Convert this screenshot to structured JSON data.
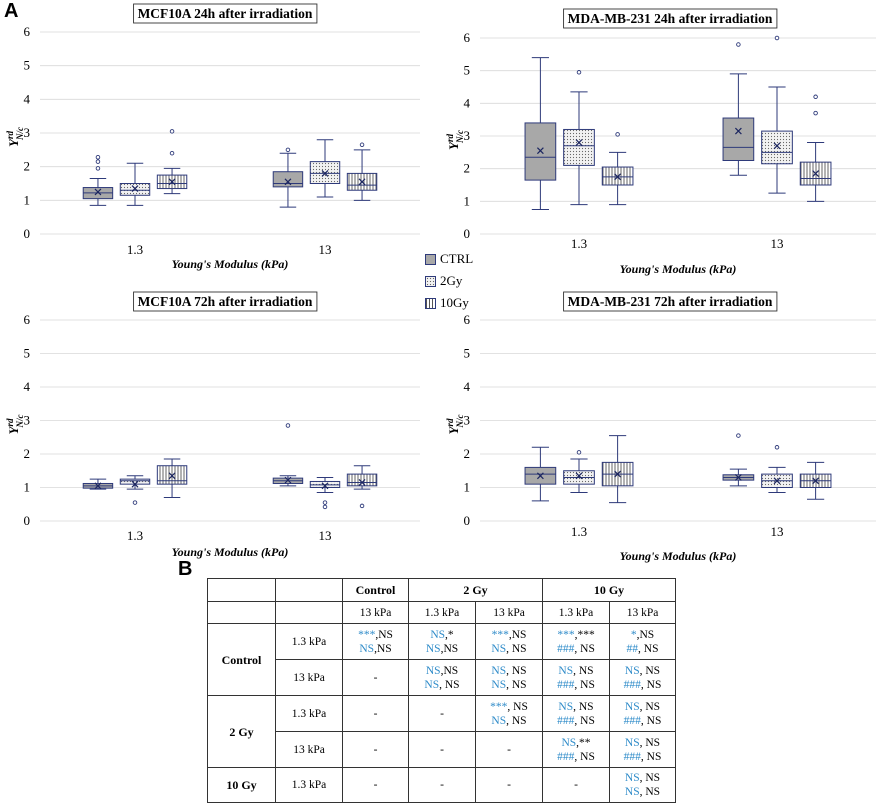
{
  "panel_a_label": "A",
  "panel_b_label": "B",
  "legend": {
    "items": [
      {
        "label": "CTRL"
      },
      {
        "label": "2Gy"
      },
      {
        "label": "10Gy"
      }
    ]
  },
  "chart_data": [
    {
      "type": "boxplot",
      "title": "MCF10A 24h after irradiation",
      "xlabel": "Young's Modulus (kPa)",
      "ylabel": "Y",
      "ylabel_sup": "rd",
      "ylabel_sub": "N/c",
      "ylim": [
        0,
        6
      ],
      "yticks": [
        "0",
        "1",
        "2",
        "3",
        "4",
        "5",
        "6"
      ],
      "categories": [
        "1.3",
        "13"
      ],
      "series": [
        {
          "name": "CTRL",
          "boxes": [
            {
              "min": 0.85,
              "q1": 1.05,
              "median": 1.22,
              "q3": 1.38,
              "max": 1.65,
              "mean": 1.25,
              "outliers": [
                1.95,
                2.15,
                2.28
              ]
            },
            {
              "min": 0.8,
              "q1": 1.4,
              "median": 1.5,
              "q3": 1.85,
              "max": 2.4,
              "mean": 1.55,
              "outliers": [
                2.5
              ]
            }
          ]
        },
        {
          "name": "2Gy",
          "boxes": [
            {
              "min": 0.85,
              "q1": 1.15,
              "median": 1.3,
              "q3": 1.5,
              "max": 2.1,
              "mean": 1.35,
              "outliers": []
            },
            {
              "min": 1.1,
              "q1": 1.5,
              "median": 1.8,
              "q3": 2.15,
              "max": 2.8,
              "mean": 1.8,
              "outliers": []
            }
          ]
        },
        {
          "name": "10Gy",
          "boxes": [
            {
              "min": 1.2,
              "q1": 1.35,
              "median": 1.5,
              "q3": 1.75,
              "max": 1.95,
              "mean": 1.55,
              "outliers": [
                2.4,
                3.05
              ]
            },
            {
              "min": 1.0,
              "q1": 1.3,
              "median": 1.45,
              "q3": 1.8,
              "max": 2.5,
              "mean": 1.55,
              "outliers": [
                2.65
              ]
            }
          ]
        }
      ]
    },
    {
      "type": "boxplot",
      "title": "MDA-MB-231 24h after irradiation",
      "xlabel": "Young's Modulus (kPa)",
      "ylabel": "Y",
      "ylabel_sup": "rd",
      "ylabel_sub": "N/c",
      "ylim": [
        0,
        6
      ],
      "yticks": [
        "0",
        "1",
        "2",
        "3",
        "4",
        "5",
        "6"
      ],
      "categories": [
        "1.3",
        "13"
      ],
      "series": [
        {
          "name": "CTRL",
          "boxes": [
            {
              "min": 0.75,
              "q1": 1.65,
              "median": 2.35,
              "q3": 3.4,
              "max": 5.4,
              "mean": 2.55,
              "outliers": []
            },
            {
              "min": 1.8,
              "q1": 2.25,
              "median": 2.65,
              "q3": 3.55,
              "max": 4.9,
              "mean": 3.15,
              "outliers": [
                5.8
              ]
            }
          ]
        },
        {
          "name": "2Gy",
          "boxes": [
            {
              "min": 0.9,
              "q1": 2.1,
              "median": 2.7,
              "q3": 3.2,
              "max": 4.35,
              "mean": 2.8,
              "outliers": [
                4.95
              ]
            },
            {
              "min": 1.25,
              "q1": 2.15,
              "median": 2.5,
              "q3": 3.15,
              "max": 4.5,
              "mean": 2.7,
              "outliers": [
                6.0
              ]
            }
          ]
        },
        {
          "name": "10Gy",
          "boxes": [
            {
              "min": 0.9,
              "q1": 1.5,
              "median": 1.75,
              "q3": 2.05,
              "max": 2.5,
              "mean": 1.75,
              "outliers": [
                3.05
              ]
            },
            {
              "min": 1.0,
              "q1": 1.5,
              "median": 1.7,
              "q3": 2.2,
              "max": 2.8,
              "mean": 1.85,
              "outliers": [
                3.7,
                4.2
              ]
            }
          ]
        }
      ]
    },
    {
      "type": "boxplot",
      "title": "MCF10A 72h after irradiation",
      "xlabel": "Young's Modulus (kPa)",
      "ylabel": "Y",
      "ylabel_sup": "rd",
      "ylabel_sub": "N/c",
      "ylim": [
        0,
        6
      ],
      "yticks": [
        "0",
        "1",
        "2",
        "3",
        "4",
        "5",
        "6"
      ],
      "categories": [
        "1.3",
        "13"
      ],
      "series": [
        {
          "name": "CTRL",
          "boxes": [
            {
              "min": 0.95,
              "q1": 0.98,
              "median": 1.05,
              "q3": 1.12,
              "max": 1.25,
              "mean": 1.05,
              "outliers": []
            },
            {
              "min": 1.05,
              "q1": 1.12,
              "median": 1.2,
              "q3": 1.28,
              "max": 1.35,
              "mean": 1.22,
              "outliers": [
                2.85
              ]
            }
          ]
        },
        {
          "name": "2Gy",
          "boxes": [
            {
              "min": 0.95,
              "q1": 1.1,
              "median": 1.2,
              "q3": 1.25,
              "max": 1.35,
              "mean": 1.1,
              "outliers": [
                0.55
              ]
            },
            {
              "min": 0.85,
              "q1": 1.0,
              "median": 1.08,
              "q3": 1.18,
              "max": 1.3,
              "mean": 1.05,
              "outliers": [
                0.55,
                0.42
              ]
            }
          ]
        },
        {
          "name": "10Gy",
          "boxes": [
            {
              "min": 0.7,
              "q1": 1.1,
              "median": 1.2,
              "q3": 1.65,
              "max": 1.85,
              "mean": 1.35,
              "outliers": []
            },
            {
              "min": 0.95,
              "q1": 1.05,
              "median": 1.15,
              "q3": 1.4,
              "max": 1.65,
              "mean": 1.15,
              "outliers": [
                0.45
              ]
            }
          ]
        }
      ]
    },
    {
      "type": "boxplot",
      "title": "MDA-MB-231 72h after irradiation",
      "xlabel": "Young's Modulus (kPa)",
      "ylabel": "Y",
      "ylabel_sup": "rd",
      "ylabel_sub": "N/c",
      "ylim": [
        0,
        6
      ],
      "yticks": [
        "0",
        "1",
        "2",
        "3",
        "4",
        "5",
        "6"
      ],
      "categories": [
        "1.3",
        "13"
      ],
      "series": [
        {
          "name": "CTRL",
          "boxes": [
            {
              "min": 0.6,
              "q1": 1.1,
              "median": 1.4,
              "q3": 1.6,
              "max": 2.2,
              "mean": 1.35,
              "outliers": []
            },
            {
              "min": 1.05,
              "q1": 1.22,
              "median": 1.3,
              "q3": 1.38,
              "max": 1.55,
              "mean": 1.3,
              "outliers": [
                2.55
              ]
            }
          ]
        },
        {
          "name": "2Gy",
          "boxes": [
            {
              "min": 0.85,
              "q1": 1.1,
              "median": 1.3,
              "q3": 1.5,
              "max": 1.85,
              "mean": 1.35,
              "outliers": [
                2.05
              ]
            },
            {
              "min": 0.85,
              "q1": 1.0,
              "median": 1.2,
              "q3": 1.4,
              "max": 1.6,
              "mean": 1.2,
              "outliers": [
                2.2
              ]
            }
          ]
        },
        {
          "name": "10Gy",
          "boxes": [
            {
              "min": 0.55,
              "q1": 1.05,
              "median": 1.4,
              "q3": 1.75,
              "max": 2.55,
              "mean": 1.4,
              "outliers": []
            },
            {
              "min": 0.65,
              "q1": 1.0,
              "median": 1.2,
              "q3": 1.4,
              "max": 1.75,
              "mean": 1.2,
              "outliers": []
            }
          ]
        }
      ]
    }
  ],
  "table": {
    "header1": [
      "",
      "",
      "Control",
      "2 Gy",
      "10 Gy"
    ],
    "header2": [
      "",
      "",
      "13 kPa",
      "1.3 kPa",
      "13 kPa",
      "1.3 kPa",
      "13 kPa"
    ],
    "rows": [
      {
        "group": "Control",
        "sub": "1.3 kPa",
        "cells": [
          [
            [
              "***",
              ",NS"
            ],
            [
              "NS",
              ",NS"
            ]
          ],
          [
            [
              "NS",
              ",*"
            ],
            [
              "NS",
              ",NS"
            ]
          ],
          [
            [
              "***",
              ",NS"
            ],
            [
              "NS",
              ", NS"
            ]
          ],
          [
            [
              "***",
              ",***"
            ],
            [
              "###",
              ", NS"
            ]
          ],
          [
            [
              "*",
              ",NS"
            ],
            [
              "##",
              ", NS"
            ]
          ]
        ]
      },
      {
        "group": "",
        "sub": "13 kPa",
        "cells": [
          "-",
          [
            [
              "NS",
              ",NS"
            ],
            [
              "NS",
              ", NS"
            ]
          ],
          [
            [
              "NS",
              ", NS"
            ],
            [
              "NS",
              ", NS"
            ]
          ],
          [
            [
              "NS",
              ", NS"
            ],
            [
              "###",
              ", NS"
            ]
          ],
          [
            [
              "NS",
              ", NS"
            ],
            [
              "###",
              ", NS"
            ]
          ]
        ]
      },
      {
        "group": "2 Gy",
        "sub": "1.3 kPa",
        "cells": [
          "-",
          "-",
          [
            [
              "***",
              ", NS"
            ],
            [
              "NS",
              ", NS"
            ]
          ],
          [
            [
              "NS",
              ", NS"
            ],
            [
              "###",
              ", NS"
            ]
          ],
          [
            [
              "NS",
              ", NS"
            ],
            [
              "###",
              ", NS"
            ]
          ]
        ]
      },
      {
        "group": "",
        "sub": "13 kPa",
        "cells": [
          "-",
          "-",
          "-",
          [
            [
              "NS",
              ",**"
            ],
            [
              "###",
              ", NS"
            ]
          ],
          [
            [
              "NS",
              ", NS"
            ],
            [
              "###",
              ", NS"
            ]
          ]
        ]
      },
      {
        "group": "10 Gy",
        "sub": "1.3 kPa",
        "cells": [
          "-",
          "-",
          "-",
          "-",
          [
            [
              "NS",
              ", NS"
            ],
            [
              "NS",
              ", NS"
            ]
          ]
        ]
      }
    ]
  }
}
